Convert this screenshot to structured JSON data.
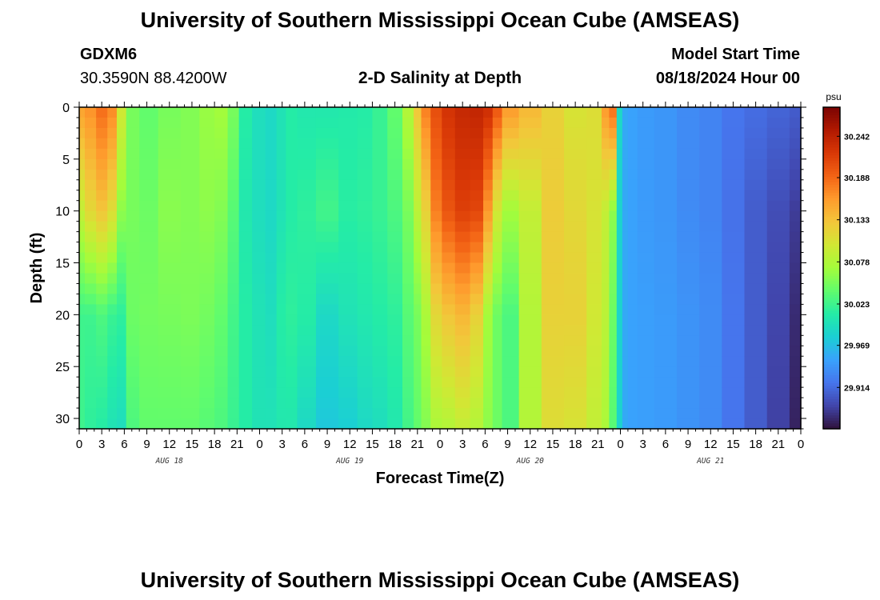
{
  "page": {
    "title": "University of Southern Mississippi Ocean Cube (AMSEAS)",
    "footer_title": "University of Southern Mississippi Ocean Cube (AMSEAS)",
    "station": "GDXM6",
    "coords": "30.3590N  88.4200W",
    "subtitle": "2-D Salinity at Depth",
    "model_label": "Model Start Time",
    "model_time": "08/18/2024 Hour 00"
  },
  "chart_data": {
    "type": "heatmap",
    "title": "2-D Salinity at Depth",
    "xlabel": "Forecast Time(Z)",
    "ylabel": "Depth (ft)",
    "colorbar_label": "psu",
    "xlim": [
      0,
      96
    ],
    "ylim": [
      31,
      0
    ],
    "x_tick_values": [
      0,
      3,
      6,
      9,
      12,
      15,
      18,
      21,
      24,
      27,
      30,
      33,
      36,
      39,
      42,
      45,
      48,
      51,
      54,
      57,
      60,
      63,
      66,
      69,
      72,
      75,
      78,
      81,
      84,
      87,
      90,
      93,
      96
    ],
    "x_tick_labels": [
      "0",
      "3",
      "6",
      "9",
      "12",
      "15",
      "18",
      "21",
      "0",
      "3",
      "6",
      "9",
      "12",
      "15",
      "18",
      "21",
      "0",
      "3",
      "6",
      "9",
      "12",
      "15",
      "18",
      "21",
      "0",
      "3",
      "6",
      "9",
      "12",
      "15",
      "18",
      "21",
      "0"
    ],
    "y_ticks": [
      0,
      5,
      10,
      15,
      20,
      25,
      30
    ],
    "date_labels": [
      {
        "label": "AUG 18",
        "x": 12
      },
      {
        "label": "AUG 19",
        "x": 36
      },
      {
        "label": "AUG 20",
        "x": 60
      },
      {
        "label": "AUG 21",
        "x": 84
      }
    ],
    "colorbar_ticks": [
      "30.242",
      "30.188",
      "30.133",
      "30.078",
      "30.023",
      "29.969",
      "29.914"
    ],
    "colorbar_range": [
      29.86,
      30.28
    ],
    "colormap": [
      "#30123b",
      "#4145ab",
      "#4675ed",
      "#39a2fc",
      "#1bcfd4",
      "#24eca6",
      "#61fc6c",
      "#a4fc3b",
      "#d1e834",
      "#f3c63a",
      "#fe9b2d",
      "#f36315",
      "#d93806",
      "#b11901",
      "#7a0403"
    ],
    "depths": [
      0,
      5,
      10,
      15,
      20,
      25,
      31
    ],
    "times": [
      0,
      1.5,
      3,
      4.5,
      5.5,
      7,
      9,
      12,
      15,
      17,
      19,
      20.5,
      22,
      24,
      25.5,
      27,
      28,
      30,
      33,
      36,
      38,
      40,
      42,
      44,
      45,
      46,
      47.5,
      49,
      51,
      53,
      54.5,
      55.5,
      57,
      60,
      63,
      66,
      69,
      70,
      71,
      72,
      72.5,
      73.5,
      75,
      78,
      81,
      84,
      87,
      90,
      93,
      96
    ],
    "salinity": [
      [
        30.155,
        30.09,
        30.023,
        30.023
      ],
      [
        30.165,
        30.115,
        30.023,
        30.015
      ],
      [
        30.185,
        30.13,
        30.03,
        30.01
      ],
      [
        30.17,
        30.11,
        30.02,
        30.0
      ],
      [
        30.1,
        30.06,
        30.015,
        29.995
      ],
      [
        30.05,
        30.05,
        30.045,
        30.03
      ],
      [
        30.04,
        30.045,
        30.048,
        30.04
      ],
      [
        30.05,
        30.058,
        30.05,
        30.04
      ],
      [
        30.055,
        30.055,
        30.052,
        30.04
      ],
      [
        30.065,
        30.06,
        30.048,
        30.035
      ],
      [
        30.07,
        30.055,
        30.04,
        30.03
      ],
      [
        30.05,
        30.035,
        30.025,
        30.02
      ],
      [
        30.01,
        30.005,
        30.01,
        30.01
      ],
      [
        29.995,
        29.995,
        30.0,
        30.0
      ],
      [
        29.99,
        29.99,
        29.995,
        30.0
      ],
      [
        30.0,
        30.0,
        30.01,
        30.005
      ],
      [
        30.01,
        30.01,
        30.015,
        30.005
      ],
      [
        30.005,
        30.015,
        30.01,
        29.99
      ],
      [
        30.005,
        30.025,
        29.99,
        29.975
      ],
      [
        30.008,
        30.012,
        30.0,
        29.98
      ],
      [
        30.01,
        30.015,
        30.005,
        29.99
      ],
      [
        30.02,
        30.02,
        30.01,
        29.995
      ],
      [
        30.04,
        30.03,
        30.015,
        30.005
      ],
      [
        30.08,
        30.05,
        30.035,
        30.025
      ],
      [
        30.13,
        30.085,
        30.05,
        30.04
      ],
      [
        30.175,
        30.12,
        30.075,
        30.055
      ],
      [
        30.205,
        30.175,
        30.115,
        30.075
      ],
      [
        30.225,
        30.2,
        30.13,
        30.08
      ],
      [
        30.235,
        30.215,
        30.14,
        30.09
      ],
      [
        30.238,
        30.21,
        30.12,
        30.08
      ],
      [
        30.23,
        30.16,
        30.07,
        30.06
      ],
      [
        30.2,
        30.1,
        30.045,
        30.045
      ],
      [
        30.16,
        30.07,
        30.03,
        30.03
      ],
      [
        30.14,
        30.09,
        30.08,
        30.08
      ],
      [
        30.12,
        30.125,
        30.12,
        30.11
      ],
      [
        30.105,
        30.115,
        30.12,
        30.105
      ],
      [
        30.11,
        30.105,
        30.1,
        30.09
      ],
      [
        30.16,
        30.09,
        30.085,
        30.075
      ],
      [
        30.185,
        30.06,
        30.045,
        30.035
      ],
      [
        29.99,
        29.985,
        29.985,
        29.985
      ],
      [
        29.955,
        29.955,
        29.955,
        29.955
      ],
      [
        29.95,
        29.95,
        29.95,
        29.95
      ],
      [
        29.945,
        29.945,
        29.948,
        29.948
      ],
      [
        29.942,
        29.942,
        29.945,
        29.945
      ],
      [
        29.935,
        29.935,
        29.94,
        29.94
      ],
      [
        29.93,
        29.93,
        29.935,
        29.935
      ],
      [
        29.92,
        29.918,
        29.92,
        29.92
      ],
      [
        29.915,
        29.905,
        29.905,
        29.905
      ],
      [
        29.91,
        29.895,
        29.89,
        29.888
      ],
      [
        29.905,
        29.885,
        29.875,
        29.87
      ]
    ]
  }
}
